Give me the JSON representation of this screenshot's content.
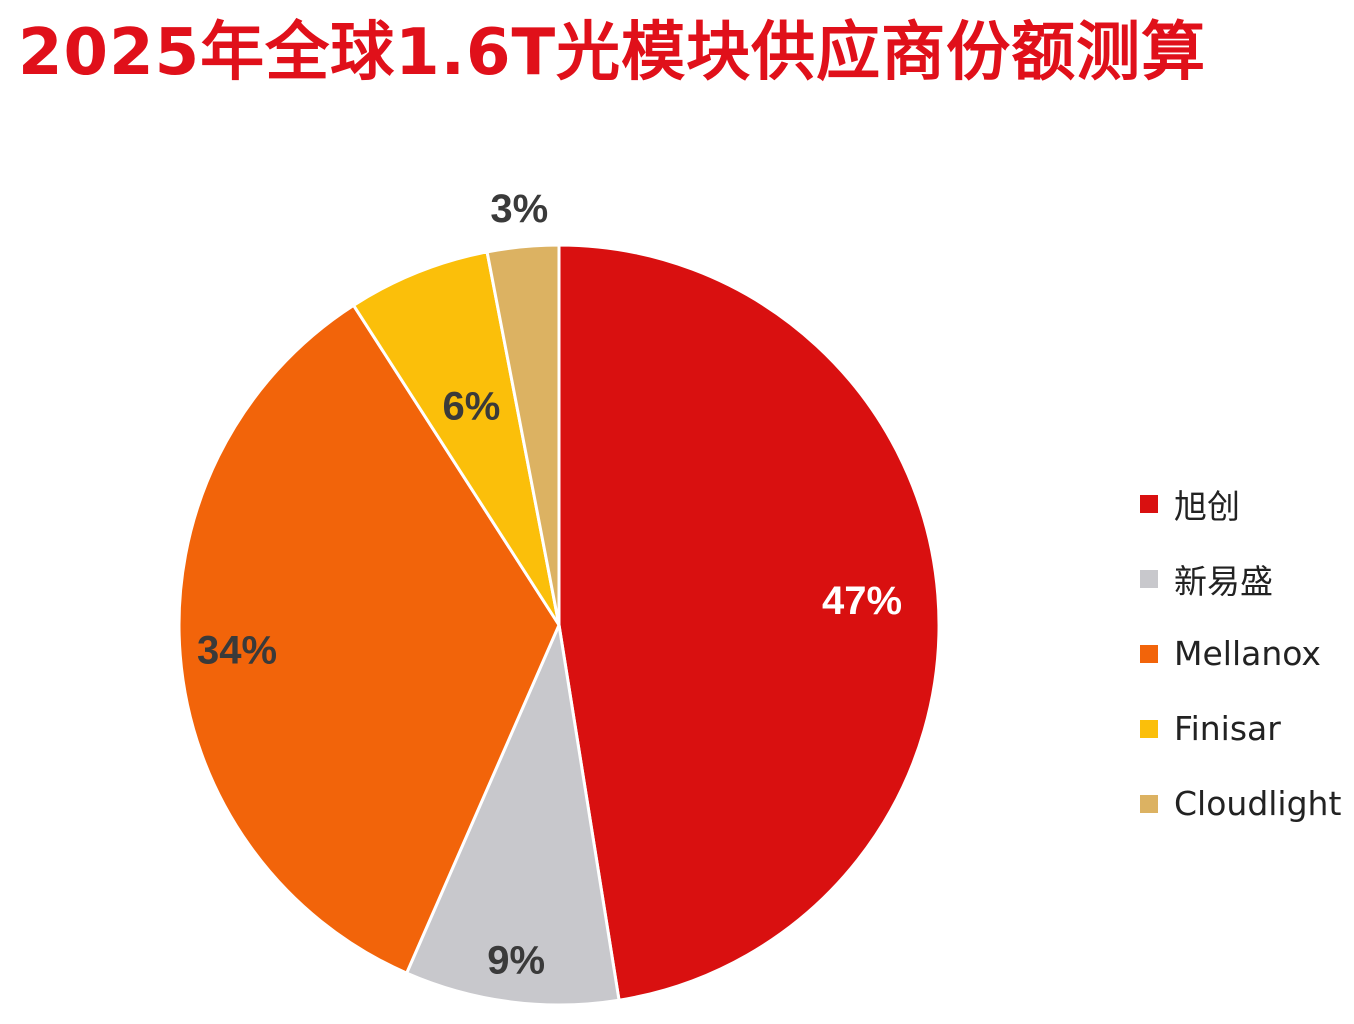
{
  "chart_data": {
    "type": "pie",
    "title": "2025年全球1.6T光模块供应商份额测算",
    "slices": [
      {
        "name": "旭创",
        "value": 47,
        "label": "47%",
        "color": "#d91010",
        "label_color": "#ffffff"
      },
      {
        "name": "新易盛",
        "value": 9,
        "label": "9%",
        "color": "#c8c8cc",
        "label_color": "#3a3a3a"
      },
      {
        "name": "Mellanox",
        "value": 34,
        "label": "34%",
        "color": "#f2640a",
        "label_color": "#3a3a3a"
      },
      {
        "name": "Finisar",
        "value": 6,
        "label": "6%",
        "color": "#fbbf0a",
        "label_color": "#3a3a3a"
      },
      {
        "name": "Cloudlight",
        "value": 3,
        "label": "3%",
        "color": "#dcb262",
        "label_color": "#3a3a3a"
      }
    ],
    "legend_position": "right",
    "start_angle": "top",
    "direction": "clockwise"
  }
}
